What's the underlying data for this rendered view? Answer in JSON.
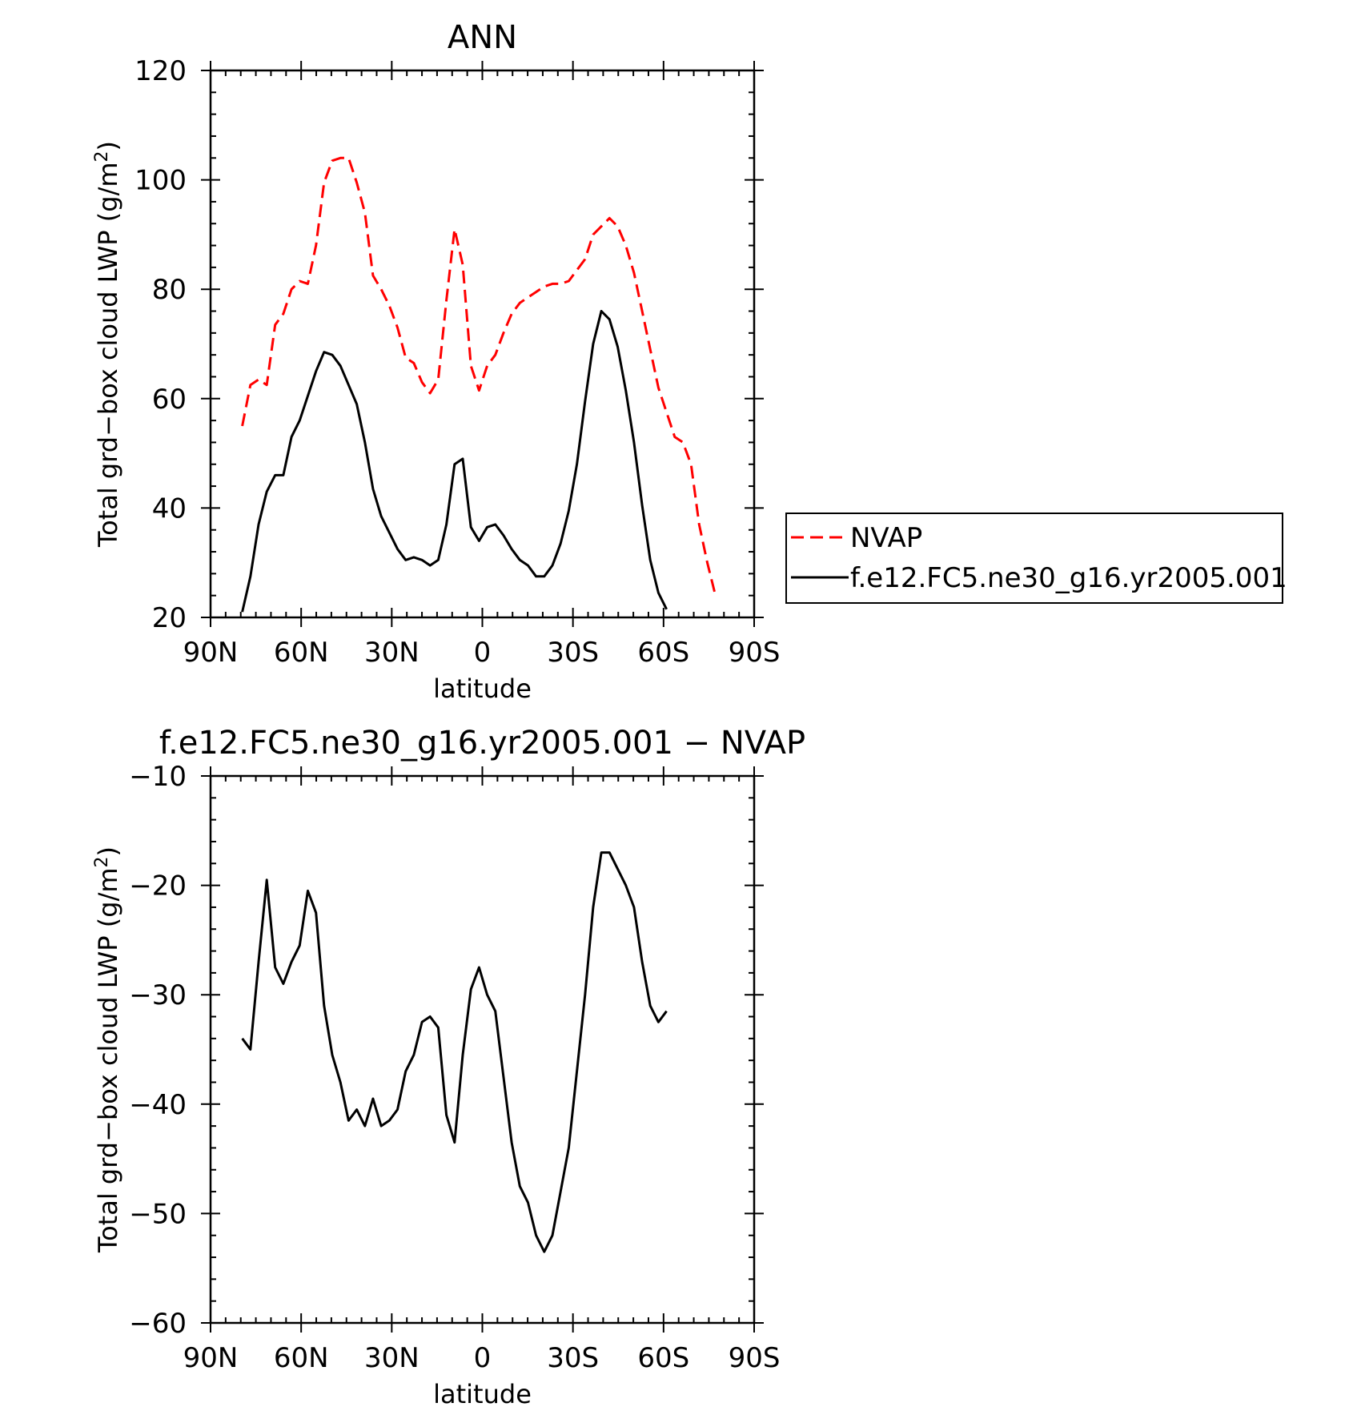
{
  "chart_data": [
    {
      "type": "line",
      "title": "ANN",
      "xlabel": "latitude",
      "ylabel": "Total grd−box cloud LWP (g/m",
      "ylabel_sup": "2",
      "ylabel_close": ")",
      "xlim": [
        90,
        -90
      ],
      "ylim": [
        20,
        120
      ],
      "x_ticks": [
        90,
        60,
        30,
        0,
        -30,
        -60,
        -90
      ],
      "x_tick_labels": [
        "90N",
        "60N",
        "30N",
        "0",
        "30S",
        "60S",
        "90S"
      ],
      "y_ticks": [
        20,
        40,
        60,
        80,
        100,
        120
      ],
      "y_tick_labels": [
        "20",
        "40",
        "60",
        "80",
        "100",
        "120"
      ],
      "legend": "right",
      "series": [
        {
          "name": "NVAP",
          "color": "#ff0000",
          "dash": "dashed",
          "points": [
            [
              79.5,
              55
            ],
            [
              76.8,
              62.5
            ],
            [
              74.1,
              63.5
            ],
            [
              71.4,
              62.5
            ],
            [
              68.6,
              73.5
            ],
            [
              65.9,
              75.5
            ],
            [
              63.2,
              80
            ],
            [
              60.5,
              81.5
            ],
            [
              57.8,
              81
            ],
            [
              55.1,
              88
            ],
            [
              52.4,
              99.5
            ],
            [
              49.7,
              103.5
            ],
            [
              47,
              104
            ],
            [
              44.3,
              104
            ],
            [
              41.6,
              99.5
            ],
            [
              38.9,
              94
            ],
            [
              36.2,
              82.5
            ],
            [
              33.5,
              80
            ],
            [
              30.8,
              77
            ],
            [
              28.1,
              73
            ],
            [
              25.4,
              67.5
            ],
            [
              22.7,
              66.5
            ],
            [
              20,
              63
            ],
            [
              17.3,
              61
            ],
            [
              14.6,
              63.5
            ],
            [
              11.9,
              78
            ],
            [
              9.2,
              91
            ],
            [
              6.5,
              84.5
            ],
            [
              3.8,
              66
            ],
            [
              1.1,
              61.5
            ],
            [
              -1.6,
              66
            ],
            [
              -4.3,
              68
            ],
            [
              -7,
              72
            ],
            [
              -9.7,
              75.5
            ],
            [
              -12.4,
              77.5
            ],
            [
              -15.1,
              78.5
            ],
            [
              -17.8,
              79.5
            ],
            [
              -20.5,
              80.5
            ],
            [
              -23.2,
              81
            ],
            [
              -25.9,
              81
            ],
            [
              -28.6,
              81.5
            ],
            [
              -31.3,
              83.5
            ],
            [
              -34,
              85.5
            ],
            [
              -36.7,
              90
            ],
            [
              -39.4,
              91.5
            ],
            [
              -42.1,
              93
            ],
            [
              -44.8,
              91.5
            ],
            [
              -47.5,
              88
            ],
            [
              -50.2,
              83
            ],
            [
              -52.9,
              76
            ],
            [
              -55.6,
              69
            ],
            [
              -58.3,
              62
            ],
            [
              -61,
              57.5
            ],
            [
              -63.7,
              53
            ],
            [
              -66.4,
              52
            ],
            [
              -69.1,
              48
            ],
            [
              -71.8,
              37
            ],
            [
              -74.5,
              30
            ],
            [
              -77.2,
              24
            ]
          ]
        },
        {
          "name": "f.e12.FC5.ne30_g16.yr2005.001",
          "color": "#000000",
          "dash": "solid",
          "points": [
            [
              79.5,
              21
            ],
            [
              76.8,
              27.5
            ],
            [
              74.1,
              37
            ],
            [
              71.4,
              43
            ],
            [
              68.6,
              46
            ],
            [
              65.9,
              46
            ],
            [
              63.2,
              53
            ],
            [
              60.5,
              56
            ],
            [
              57.8,
              60.5
            ],
            [
              55.1,
              65
            ],
            [
              52.4,
              68.5
            ],
            [
              49.7,
              68
            ],
            [
              47,
              66
            ],
            [
              44.3,
              62.5
            ],
            [
              41.6,
              59
            ],
            [
              38.9,
              52
            ],
            [
              36.2,
              43.5
            ],
            [
              33.5,
              38.5
            ],
            [
              30.8,
              35.5
            ],
            [
              28.1,
              32.5
            ],
            [
              25.4,
              30.5
            ],
            [
              22.7,
              31
            ],
            [
              20,
              30.5
            ],
            [
              17.3,
              29.5
            ],
            [
              14.6,
              30.5
            ],
            [
              11.9,
              37
            ],
            [
              9.2,
              48
            ],
            [
              6.5,
              49
            ],
            [
              3.8,
              36.5
            ],
            [
              1.1,
              34
            ],
            [
              -1.6,
              36.5
            ],
            [
              -4.3,
              37
            ],
            [
              -7,
              35
            ],
            [
              -9.7,
              32.5
            ],
            [
              -12.4,
              30.5
            ],
            [
              -15.1,
              29.5
            ],
            [
              -17.8,
              27.5
            ],
            [
              -20.5,
              27.5
            ],
            [
              -23.2,
              29.5
            ],
            [
              -25.9,
              33.5
            ],
            [
              -28.6,
              39.5
            ],
            [
              -31.3,
              48
            ],
            [
              -34,
              59.5
            ],
            [
              -36.7,
              70
            ],
            [
              -39.4,
              76
            ],
            [
              -42.1,
              74.5
            ],
            [
              -44.8,
              69.5
            ],
            [
              -47.5,
              61.5
            ],
            [
              -50.2,
              52
            ],
            [
              -52.9,
              40.5
            ],
            [
              -55.6,
              30.5
            ],
            [
              -58.3,
              24.5
            ],
            [
              -61,
              21.5
            ]
          ]
        }
      ]
    },
    {
      "type": "line",
      "title": "f.e12.FC5.ne30_g16.yr2005.001 − NVAP",
      "xlabel": "latitude",
      "ylabel": "Total grd−box cloud LWP (g/m",
      "ylabel_sup": "2",
      "ylabel_close": ")",
      "xlim": [
        90,
        -90
      ],
      "ylim": [
        -60,
        -10
      ],
      "x_ticks": [
        90,
        60,
        30,
        0,
        -30,
        -60,
        -90
      ],
      "x_tick_labels": [
        "90N",
        "60N",
        "30N",
        "0",
        "30S",
        "60S",
        "90S"
      ],
      "y_ticks": [
        -60,
        -50,
        -40,
        -30,
        -20,
        -10
      ],
      "y_tick_labels": [
        "−60",
        "−50",
        "−40",
        "−30",
        "−20",
        "−10"
      ],
      "series": [
        {
          "color": "#000000",
          "dash": "solid",
          "points": [
            [
              79.5,
              -34
            ],
            [
              76.8,
              -35
            ],
            [
              74.1,
              -27
            ],
            [
              71.4,
              -19.5
            ],
            [
              68.6,
              -27.5
            ],
            [
              65.9,
              -29
            ],
            [
              63.2,
              -27
            ],
            [
              60.5,
              -25.5
            ],
            [
              57.8,
              -20.5
            ],
            [
              55.1,
              -22.5
            ],
            [
              52.4,
              -31
            ],
            [
              49.7,
              -35.5
            ],
            [
              47,
              -38
            ],
            [
              44.3,
              -41.5
            ],
            [
              41.6,
              -40.5
            ],
            [
              38.9,
              -42
            ],
            [
              36.2,
              -39.5
            ],
            [
              33.5,
              -42
            ],
            [
              30.8,
              -41.5
            ],
            [
              28.1,
              -40.5
            ],
            [
              25.4,
              -37
            ],
            [
              22.7,
              -35.5
            ],
            [
              20,
              -32.5
            ],
            [
              17.3,
              -32
            ],
            [
              14.6,
              -33
            ],
            [
              11.9,
              -41
            ],
            [
              9.2,
              -43.5
            ],
            [
              6.5,
              -35.5
            ],
            [
              3.8,
              -29.5
            ],
            [
              1.1,
              -27.5
            ],
            [
              -1.6,
              -30
            ],
            [
              -4.3,
              -31.5
            ],
            [
              -7,
              -37.5
            ],
            [
              -9.7,
              -43.5
            ],
            [
              -12.4,
              -47.5
            ],
            [
              -15.1,
              -49
            ],
            [
              -17.8,
              -52
            ],
            [
              -20.5,
              -53.5
            ],
            [
              -23.2,
              -52
            ],
            [
              -25.9,
              -48
            ],
            [
              -28.6,
              -44
            ],
            [
              -31.3,
              -37
            ],
            [
              -34,
              -30
            ],
            [
              -36.7,
              -22
            ],
            [
              -39.4,
              -17
            ],
            [
              -42.1,
              -17
            ],
            [
              -44.8,
              -18.5
            ],
            [
              -47.5,
              -20
            ],
            [
              -50.2,
              -22
            ],
            [
              -52.9,
              -27
            ],
            [
              -55.6,
              -31
            ],
            [
              -58.3,
              -32.5
            ],
            [
              -61,
              -31.5
            ]
          ]
        }
      ]
    }
  ]
}
